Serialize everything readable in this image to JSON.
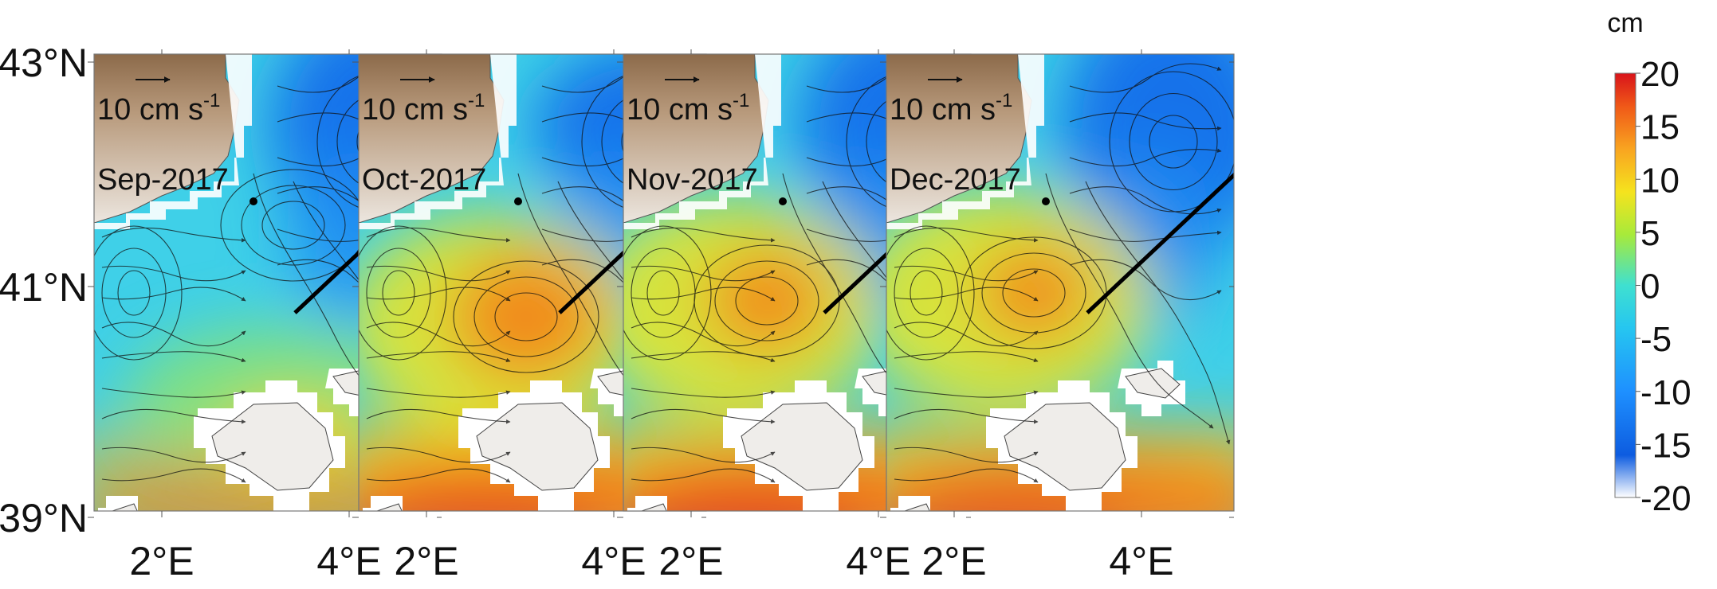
{
  "figure": {
    "colorbar": {
      "unit": "cm",
      "ticks": [
        "20",
        "15",
        "10",
        "5",
        "0",
        "-5",
        "-10",
        "-15",
        "-20"
      ],
      "range": [
        -20,
        20
      ],
      "colors": [
        "#ffffff",
        "#0d5ce0",
        "#1e90ff",
        "#26c6f0",
        "#3fe0d0",
        "#a8ea3a",
        "#f5e31e",
        "#f9a520",
        "#f05a18",
        "#d8131a"
      ]
    },
    "axes": {
      "lat_labels": [
        "43°N",
        "41°N",
        "39°N"
      ],
      "lon_labels": [
        "2°E",
        "4°E"
      ]
    },
    "scale_label": "10 cm s",
    "scale_exp": "-1",
    "panels": [
      {
        "month": "Sep-2017"
      },
      {
        "month": "Oct-2017"
      },
      {
        "month": "Nov-2017"
      },
      {
        "month": "Dec-2017"
      }
    ]
  }
}
